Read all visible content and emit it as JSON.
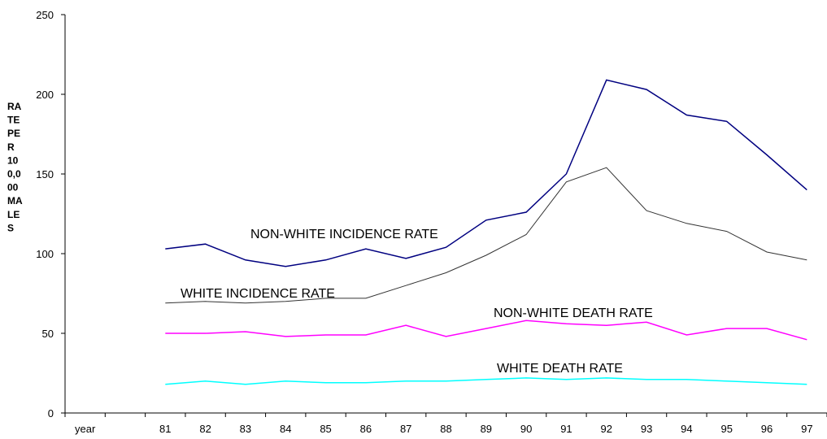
{
  "chart_data": {
    "type": "line",
    "categories": [
      "year",
      "",
      "81",
      "82",
      "83",
      "84",
      "85",
      "86",
      "87",
      "88",
      "89",
      "90",
      "91",
      "92",
      "93",
      "94",
      "95",
      "96",
      "97"
    ],
    "ylabel_lines": [
      "RA",
      "TE",
      "PE",
      "R",
      "10",
      "0,0",
      "00",
      "MA",
      "LE",
      "S"
    ],
    "ylim": [
      0,
      250
    ],
    "yticks": [
      "0",
      "50",
      "100",
      "150",
      "200",
      "250"
    ],
    "grid": false,
    "legend": "none",
    "series": [
      {
        "name": "NON-WHITE INCIDENCE RATE",
        "color": "#000080",
        "values": [
          null,
          null,
          103,
          106,
          96,
          92,
          96,
          103,
          97,
          104,
          121,
          126,
          150,
          209,
          203,
          187,
          183,
          162,
          140
        ]
      },
      {
        "name": "WHITE INCIDENCE RATE",
        "color": "#333333",
        "values": [
          null,
          null,
          69,
          70,
          69,
          70,
          72,
          72,
          80,
          88,
          99,
          112,
          145,
          154,
          127,
          119,
          114,
          101,
          96
        ]
      },
      {
        "name": "NON-WHITE DEATH RATE",
        "color": "#ff00ff",
        "values": [
          null,
          null,
          50,
          50,
          51,
          48,
          49,
          49,
          55,
          48,
          53,
          58,
          56,
          55,
          57,
          49,
          53,
          53,
          46
        ]
      },
      {
        "name": "WHITE DEATH RATE",
        "color": "#00ffff",
        "values": [
          null,
          null,
          18,
          20,
          18,
          20,
          19,
          19,
          20,
          20,
          21,
          22,
          21,
          22,
          21,
          21,
          20,
          19,
          18
        ]
      }
    ]
  }
}
